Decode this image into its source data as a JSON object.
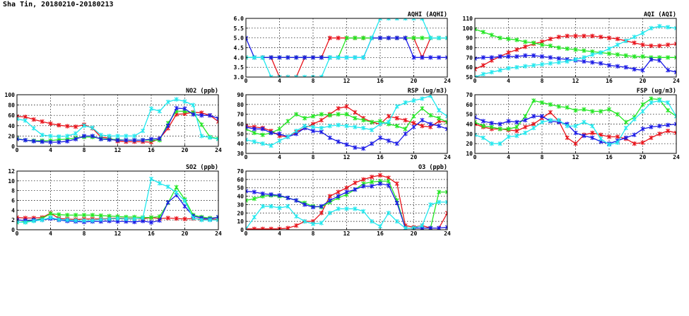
{
  "page_title": "Sha Tin, 20180210-20180213",
  "colors": {
    "red": "#e8141c",
    "green": "#22e622",
    "blue": "#1a1ae6",
    "cyan": "#22e8ee"
  },
  "chart_data": [
    {
      "id": "aqhi",
      "type": "line",
      "title": "AQHI (AQHI)",
      "xlim": [
        0,
        24
      ],
      "ylim": [
        3.0,
        6.0
      ],
      "xticks": [
        0,
        4,
        8,
        12,
        16,
        20,
        24
      ],
      "yticks": [
        3.0,
        3.5,
        4.0,
        4.5,
        5.0,
        5.5,
        6.0
      ],
      "ytick_labels": [
        "3.0",
        "3.5",
        "4.0",
        "4.5",
        "5.0",
        "5.5",
        "6.0"
      ],
      "grid": true,
      "series": [
        {
          "color": "red",
          "values": [
            4,
            4,
            4,
            4,
            3,
            3,
            3,
            4,
            4,
            4,
            5,
            5,
            5,
            5,
            5,
            5,
            5,
            5,
            5,
            5,
            5,
            4,
            5,
            5,
            5
          ]
        },
        {
          "color": "green",
          "values": [
            4,
            4,
            4,
            4,
            4,
            4,
            4,
            4,
            4,
            4,
            4,
            4,
            5,
            5,
            5,
            5,
            5,
            5,
            5,
            5,
            5,
            5,
            5,
            5,
            5
          ]
        },
        {
          "color": "blue",
          "values": [
            5,
            4,
            4,
            4,
            4,
            4,
            4,
            4,
            4,
            4,
            4,
            4,
            4,
            4,
            4,
            5,
            5,
            5,
            5,
            5,
            4,
            4,
            4,
            4,
            4
          ]
        },
        {
          "color": "cyan",
          "values": [
            4,
            4,
            4,
            3,
            3,
            3,
            3,
            3,
            3,
            3,
            4,
            4,
            4,
            4,
            4,
            5,
            6,
            6,
            6,
            6,
            6,
            6,
            5,
            5,
            5
          ]
        }
      ]
    },
    {
      "id": "aqi",
      "type": "line",
      "title": "AQI (AQI)",
      "xlim": [
        0,
        24
      ],
      "ylim": [
        50,
        110
      ],
      "xticks": [
        0,
        4,
        8,
        12,
        16,
        20,
        24
      ],
      "yticks": [
        50,
        60,
        70,
        80,
        90,
        100,
        110
      ],
      "ytick_labels": [
        "50",
        "60",
        "70",
        "80",
        "90",
        "100",
        "110"
      ],
      "grid": true,
      "series": [
        {
          "color": "red",
          "values": [
            58,
            62,
            67,
            71,
            75,
            78,
            81,
            84,
            86,
            89,
            91,
            92,
            92,
            92,
            92,
            91,
            90,
            89,
            87,
            85,
            83,
            82,
            82,
            83,
            84
          ]
        },
        {
          "color": "green",
          "values": [
            99,
            96,
            93,
            90,
            89,
            88,
            86,
            85,
            83,
            82,
            80,
            79,
            78,
            77,
            76,
            75,
            74,
            73,
            72,
            71,
            71,
            70,
            70,
            70,
            70
          ]
        },
        {
          "color": "blue",
          "values": [
            69,
            70,
            70,
            71,
            71,
            71,
            72,
            72,
            71,
            70,
            69,
            68,
            67,
            66,
            65,
            64,
            62,
            61,
            60,
            58,
            57,
            68,
            67,
            57,
            55
          ]
        },
        {
          "color": "cyan",
          "values": [
            50,
            53,
            55,
            57,
            59,
            60,
            61,
            62,
            63,
            64,
            65,
            66,
            68,
            70,
            73,
            75,
            79,
            83,
            87,
            91,
            95,
            100,
            102,
            101,
            100
          ]
        }
      ]
    },
    {
      "id": "no2",
      "type": "line",
      "title": "NO2 (ppb)",
      "xlim": [
        0,
        24
      ],
      "ylim": [
        0,
        100
      ],
      "xticks": [
        0,
        4,
        8,
        12,
        16,
        20,
        24
      ],
      "yticks": [
        0,
        20,
        40,
        60,
        80,
        100
      ],
      "ytick_labels": [
        "0",
        "20",
        "40",
        "60",
        "80",
        "100"
      ],
      "grid": true,
      "series": [
        {
          "color": "red",
          "values": [
            58,
            57,
            52,
            48,
            44,
            41,
            39,
            38,
            42,
            35,
            18,
            16,
            10,
            9,
            9,
            9,
            8,
            15,
            35,
            62,
            63,
            66,
            65,
            60,
            48
          ]
        },
        {
          "color": "green",
          "values": [
            15,
            12,
            11,
            11,
            11,
            13,
            14,
            16,
            18,
            18,
            15,
            14,
            13,
            12,
            12,
            12,
            12,
            12,
            45,
            68,
            68,
            65,
            42,
            18,
            15
          ]
        },
        {
          "color": "blue",
          "values": [
            14,
            12,
            10,
            9,
            8,
            8,
            10,
            14,
            20,
            20,
            14,
            13,
            12,
            12,
            12,
            12,
            14,
            15,
            40,
            74,
            73,
            62,
            60,
            60,
            54
          ]
        },
        {
          "color": "cyan",
          "values": [
            53,
            50,
            35,
            22,
            20,
            19,
            20,
            25,
            40,
            36,
            22,
            20,
            20,
            20,
            20,
            30,
            73,
            68,
            86,
            91,
            87,
            80,
            20,
            17,
            14
          ]
        }
      ]
    },
    {
      "id": "rsp",
      "type": "line",
      "title": "RSP (ug/m3)",
      "xlim": [
        0,
        24
      ],
      "ylim": [
        30,
        90
      ],
      "xticks": [
        0,
        4,
        8,
        12,
        16,
        20,
        24
      ],
      "yticks": [
        30,
        40,
        50,
        60,
        70,
        80,
        90
      ],
      "ytick_labels": [
        "30",
        "40",
        "50",
        "60",
        "70",
        "80",
        "90"
      ],
      "grid": true,
      "series": [
        {
          "color": "red",
          "values": [
            58,
            57,
            56,
            53,
            48,
            47,
            52,
            56,
            60,
            64,
            70,
            76,
            78,
            72,
            66,
            62,
            60,
            68,
            66,
            64,
            61,
            58,
            57,
            63,
            62
          ]
        },
        {
          "color": "green",
          "values": [
            55,
            51,
            49,
            51,
            55,
            63,
            70,
            66,
            68,
            70,
            69,
            70,
            70,
            66,
            64,
            62,
            63,
            60,
            58,
            55,
            68,
            76,
            69,
            66,
            62
          ]
        },
        {
          "color": "blue",
          "values": [
            57,
            55,
            55,
            51,
            50,
            47,
            50,
            56,
            53,
            52,
            46,
            42,
            39,
            36,
            35,
            40,
            46,
            43,
            40,
            50,
            57,
            64,
            60,
            58,
            55
          ]
        },
        {
          "color": "cyan",
          "values": [
            44,
            42,
            40,
            38,
            43,
            47,
            53,
            58,
            57,
            56,
            58,
            59,
            58,
            57,
            56,
            54,
            60,
            62,
            78,
            82,
            84,
            86,
            89,
            74,
            68
          ]
        }
      ]
    },
    {
      "id": "fsp",
      "type": "line",
      "title": "FSP (ug/m3)",
      "xlim": [
        0,
        24
      ],
      "ylim": [
        10,
        70
      ],
      "xticks": [
        0,
        4,
        8,
        12,
        16,
        20,
        24
      ],
      "yticks": [
        10,
        20,
        30,
        40,
        50,
        60,
        70
      ],
      "ytick_labels": [
        "10",
        "20",
        "30",
        "40",
        "50",
        "60",
        "70"
      ],
      "grid": true,
      "series": [
        {
          "color": "red",
          "values": [
            40,
            37,
            35,
            35,
            34,
            33,
            37,
            40,
            46,
            52,
            43,
            26,
            20,
            29,
            31,
            29,
            27,
            27,
            25,
            20,
            21,
            26,
            30,
            33,
            31
          ]
        },
        {
          "color": "green",
          "values": [
            42,
            38,
            37,
            35,
            35,
            37,
            48,
            64,
            62,
            60,
            58,
            57,
            54,
            55,
            53,
            53,
            55,
            50,
            42,
            47,
            60,
            66,
            65,
            54,
            48
          ]
        },
        {
          "color": "blue",
          "values": [
            47,
            43,
            41,
            40,
            43,
            42,
            44,
            48,
            48,
            43,
            42,
            40,
            31,
            28,
            26,
            22,
            20,
            23,
            26,
            29,
            35,
            37,
            38,
            39,
            40
          ]
        },
        {
          "color": "cyan",
          "values": [
            29,
            26,
            20,
            20,
            27,
            28,
            31,
            36,
            42,
            44,
            44,
            38,
            38,
            42,
            38,
            25,
            19,
            21,
            36,
            45,
            53,
            62,
            64,
            62,
            48
          ]
        }
      ]
    },
    {
      "id": "so2",
      "type": "line",
      "title": "SO2 (ppb)",
      "xlim": [
        0,
        24
      ],
      "ylim": [
        0,
        12
      ],
      "xticks": [
        0,
        4,
        8,
        12,
        16,
        20,
        24
      ],
      "yticks": [
        0,
        2,
        4,
        6,
        8,
        10,
        12
      ],
      "ytick_labels": [
        "0",
        "2",
        "4",
        "6",
        "8",
        "10",
        "12"
      ],
      "grid": true,
      "series": [
        {
          "color": "red",
          "values": [
            2.5,
            2.4,
            2.4,
            2.5,
            3.4,
            2.3,
            2.2,
            2.1,
            2.2,
            2.2,
            2.2,
            2.3,
            2.4,
            2.3,
            2.3,
            2.2,
            2.5,
            2.3,
            2.4,
            2.3,
            2.2,
            2.3,
            2.2,
            2.1,
            2.2
          ]
        },
        {
          "color": "green",
          "values": [
            1.5,
            1.7,
            1.9,
            2.3,
            3.3,
            3.1,
            3.0,
            3.0,
            3.0,
            3.0,
            2.9,
            2.8,
            2.7,
            2.6,
            2.6,
            2.5,
            2.5,
            2.7,
            5.5,
            8.7,
            6.2,
            3.0,
            2.6,
            2.4,
            2.5
          ]
        },
        {
          "color": "blue",
          "values": [
            2.0,
            1.9,
            2.0,
            2.0,
            2.3,
            2.0,
            1.8,
            1.7,
            1.6,
            1.7,
            1.7,
            1.8,
            1.7,
            1.7,
            1.6,
            1.8,
            1.5,
            1.9,
            5.6,
            7.1,
            4.8,
            2.8,
            2.4,
            2.2,
            2.6
          ]
        },
        {
          "color": "cyan",
          "values": [
            1.6,
            1.5,
            1.8,
            2.0,
            2.5,
            2.1,
            2.0,
            1.9,
            1.9,
            1.9,
            2.1,
            2.2,
            2.3,
            2.2,
            2.2,
            2.4,
            10.4,
            9.5,
            8.8,
            7.6,
            5.9,
            2.4,
            2.0,
            2.0,
            2.0
          ]
        }
      ]
    },
    {
      "id": "o3",
      "type": "line",
      "title": "O3 (ppb)",
      "xlim": [
        0,
        24
      ],
      "ylim": [
        0,
        70
      ],
      "xticks": [
        0,
        4,
        8,
        12,
        16,
        20,
        24
      ],
      "yticks": [
        0,
        10,
        20,
        30,
        40,
        50,
        60,
        70
      ],
      "ytick_labels": [
        "0",
        "10",
        "20",
        "30",
        "40",
        "50",
        "60",
        "70"
      ],
      "grid": true,
      "series": [
        {
          "color": "red",
          "values": [
            1,
            1,
            1,
            1,
            1,
            2,
            5,
            10,
            10,
            20,
            40,
            45,
            50,
            56,
            60,
            63,
            65,
            62,
            55,
            5,
            3,
            5,
            2,
            2,
            20
          ]
        },
        {
          "color": "green",
          "values": [
            35,
            37,
            40,
            41,
            40,
            38,
            35,
            32,
            28,
            27,
            33,
            38,
            42,
            48,
            55,
            57,
            58,
            58,
            35,
            2,
            2,
            2,
            2,
            45,
            45
          ]
        },
        {
          "color": "blue",
          "values": [
            46,
            45,
            43,
            42,
            41,
            38,
            35,
            30,
            27,
            28,
            35,
            40,
            45,
            48,
            52,
            52,
            55,
            53,
            32,
            2,
            2,
            2,
            2,
            2,
            3
          ]
        },
        {
          "color": "cyan",
          "values": [
            1,
            15,
            28,
            28,
            26,
            28,
            16,
            10,
            7,
            8,
            20,
            25,
            25,
            25,
            22,
            10,
            4,
            20,
            10,
            2,
            2,
            5,
            30,
            33,
            33
          ]
        }
      ]
    }
  ]
}
